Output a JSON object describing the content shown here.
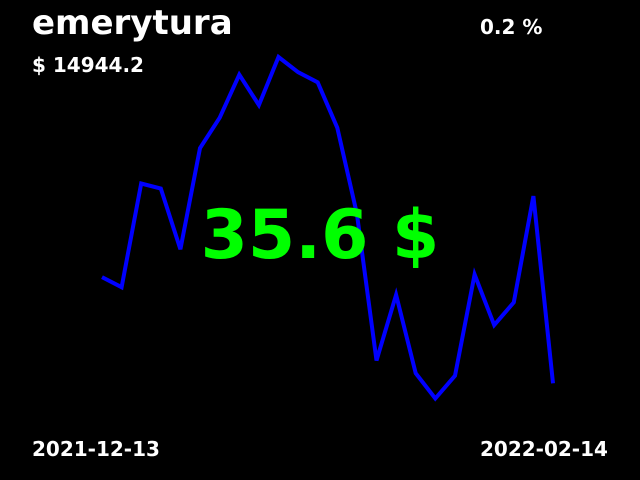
{
  "widget": {
    "title": "emerytura",
    "change": "0.2 %",
    "balance": "$ 14944.2",
    "price": "35.6 $",
    "date_start": "2021-12-13",
    "date_end": "2022-02-14"
  },
  "colors": {
    "background": "#000000",
    "text": "#ffffff",
    "price": "#00ff00",
    "line": "#0000ff"
  },
  "chart_data": {
    "type": "line",
    "series": [
      {
        "values": [
          28.6,
          28.2,
          32.3,
          32.1,
          29.7,
          33.7,
          34.9,
          36.6,
          35.4,
          37.3,
          36.7,
          36.3,
          34.5,
          31.1,
          25.3,
          27.9,
          24.8,
          23.8,
          24.7,
          28.7,
          26.7,
          27.6,
          31.8,
          24.4
        ]
      }
    ],
    "x_start": "2021-12-13",
    "x_end": "2022-02-14",
    "ylim": [
      22.0,
      39.0
    ],
    "grid": false,
    "axes_visible": false
  }
}
